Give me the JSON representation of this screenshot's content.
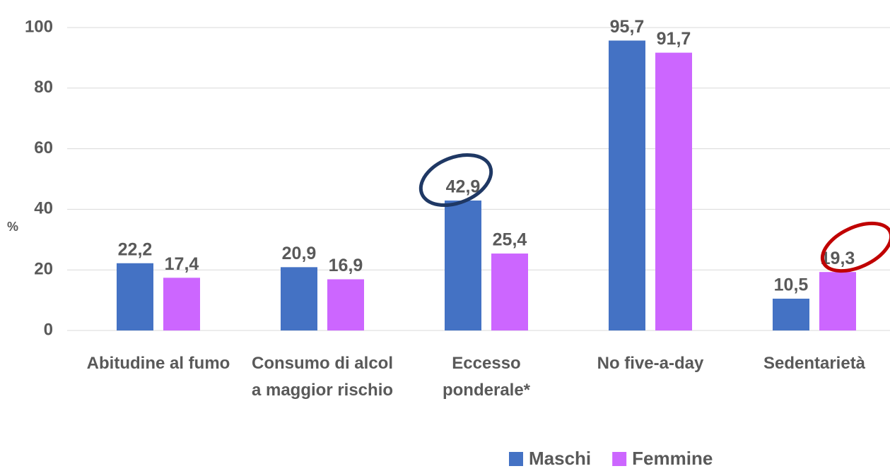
{
  "chart_data": {
    "type": "bar",
    "y_label": "%",
    "categories": [
      "Abitudine al fumo",
      "Consumo di alcol a maggior rischio",
      "Eccesso ponderale*",
      "No five-a-day",
      "Sedentarietà"
    ],
    "series": [
      {
        "name": "Maschi",
        "color": "#4472c4",
        "values": [
          22.2,
          20.9,
          42.9,
          95.7,
          10.5
        ],
        "value_labels": [
          "22,2",
          "20,9",
          "42,9",
          "95,7",
          "10,5"
        ]
      },
      {
        "name": "Femmine",
        "color": "#cc66ff",
        "values": [
          17.4,
          16.9,
          25.4,
          91.7,
          19.3
        ],
        "value_labels": [
          "17,4",
          "16,9",
          "25,4",
          "91,7",
          "19,3"
        ]
      }
    ],
    "ylim": [
      0,
      100
    ],
    "yticks": [
      0,
      20,
      40,
      60,
      80,
      100
    ],
    "grid": true
  }
}
